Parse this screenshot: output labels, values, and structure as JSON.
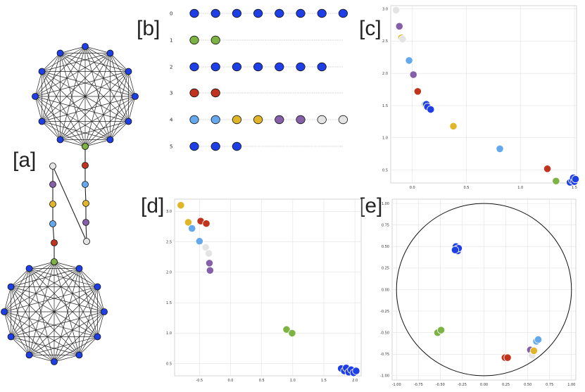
{
  "panel_labels": {
    "a": "[a]",
    "b": "[b]",
    "c": "[c]",
    "d": "[d]",
    "e": "[e]"
  },
  "colors": {
    "blue": "#1f3fe6",
    "green": "#7cb342",
    "red": "#c0341d",
    "lightblue": "#64a8ee",
    "gold": "#e0b528",
    "purple": "#8560a8",
    "lightgray": "#e4e4e4",
    "edge": "#222222"
  },
  "panel_b": {
    "rows": [
      {
        "label": "0",
        "nodes": [
          "blue",
          "blue",
          "blue",
          "blue",
          "blue",
          "blue",
          "blue",
          "blue"
        ]
      },
      {
        "label": "1",
        "nodes": [
          "green",
          "green"
        ]
      },
      {
        "label": "2",
        "nodes": [
          "blue",
          "blue",
          "blue",
          "blue",
          "blue",
          "blue",
          "blue"
        ]
      },
      {
        "label": "3",
        "nodes": [
          "red",
          "red"
        ]
      },
      {
        "label": "4",
        "nodes": [
          "lightblue",
          "lightblue",
          "gold",
          "gold",
          "purple",
          "purple",
          "lightgray",
          "lightgray"
        ]
      },
      {
        "label": "5",
        "nodes": [
          "blue",
          "blue",
          "blue"
        ]
      }
    ]
  },
  "chart_data": [
    {
      "panel": "c",
      "type": "scatter",
      "xlim": [
        -0.2,
        1.52
      ],
      "ylim": [
        0.3,
        3.05
      ],
      "x_ticks": [
        "0.0",
        "0.5",
        "1.0",
        "1.5"
      ],
      "y_ticks": [
        "0.5",
        "1.0",
        "1.5",
        "2.0",
        "2.5",
        "3.0"
      ],
      "grid": true,
      "points": [
        {
          "x": -0.15,
          "y": 2.98,
          "c": "lightgray"
        },
        {
          "x": -0.12,
          "y": 2.73,
          "c": "purple"
        },
        {
          "x": -0.1,
          "y": 2.55,
          "c": "gold"
        },
        {
          "x": -0.09,
          "y": 2.53,
          "c": "lightgray"
        },
        {
          "x": -0.03,
          "y": 2.2,
          "c": "lightblue"
        },
        {
          "x": 0.01,
          "y": 1.98,
          "c": "purple"
        },
        {
          "x": 0.05,
          "y": 1.72,
          "c": "red"
        },
        {
          "x": 0.12,
          "y": 1.52,
          "c": "green"
        },
        {
          "x": 0.13,
          "y": 1.52,
          "c": "blue"
        },
        {
          "x": 0.14,
          "y": 1.48,
          "c": "blue"
        },
        {
          "x": 0.17,
          "y": 1.44,
          "c": "blue"
        },
        {
          "x": 0.38,
          "y": 1.18,
          "c": "gold"
        },
        {
          "x": 0.81,
          "y": 0.83,
          "c": "lightblue"
        },
        {
          "x": 1.25,
          "y": 0.52,
          "c": "red"
        },
        {
          "x": 1.33,
          "y": 0.33,
          "c": "green"
        },
        {
          "x": 1.46,
          "y": 0.31,
          "c": "blue"
        },
        {
          "x": 1.48,
          "y": 0.34,
          "c": "blue"
        },
        {
          "x": 1.49,
          "y": 0.38,
          "c": "blue"
        },
        {
          "x": 1.5,
          "y": 0.32,
          "c": "blue"
        },
        {
          "x": 1.51,
          "y": 0.36,
          "c": "blue"
        }
      ]
    },
    {
      "panel": "d",
      "type": "scatter",
      "xlim": [
        -0.9,
        2.1
      ],
      "ylim": [
        0.3,
        3.2
      ],
      "x_ticks": [
        "-0.5",
        "0.0",
        "0.5",
        "1.0",
        "1.5",
        "2.0"
      ],
      "y_ticks": [
        "0.5",
        "1.0",
        "1.5",
        "2.0",
        "2.5",
        "3.0"
      ],
      "grid": true,
      "points": [
        {
          "x": -0.8,
          "y": 3.1,
          "c": "gold"
        },
        {
          "x": -0.68,
          "y": 2.82,
          "c": "gold"
        },
        {
          "x": -0.62,
          "y": 2.72,
          "c": "lightblue"
        },
        {
          "x": -0.48,
          "y": 2.84,
          "c": "red"
        },
        {
          "x": -0.39,
          "y": 2.8,
          "c": "red"
        },
        {
          "x": -0.5,
          "y": 2.51,
          "c": "lightblue"
        },
        {
          "x": -0.4,
          "y": 2.41,
          "c": "lightgray"
        },
        {
          "x": -0.35,
          "y": 2.31,
          "c": "lightgray"
        },
        {
          "x": -0.34,
          "y": 2.15,
          "c": "purple"
        },
        {
          "x": -0.33,
          "y": 2.03,
          "c": "purple"
        },
        {
          "x": 0.9,
          "y": 1.06,
          "c": "green"
        },
        {
          "x": 0.99,
          "y": 1.0,
          "c": "green"
        },
        {
          "x": 1.78,
          "y": 0.42,
          "c": "blue"
        },
        {
          "x": 1.83,
          "y": 0.38,
          "c": "blue"
        },
        {
          "x": 1.86,
          "y": 0.43,
          "c": "blue"
        },
        {
          "x": 1.9,
          "y": 0.36,
          "c": "blue"
        },
        {
          "x": 1.94,
          "y": 0.4,
          "c": "blue"
        },
        {
          "x": 1.98,
          "y": 0.35,
          "c": "blue"
        },
        {
          "x": 2.02,
          "y": 0.38,
          "c": "blue"
        }
      ]
    },
    {
      "panel": "e",
      "type": "scatter",
      "xlim": [
        -1.05,
        1.05
      ],
      "ylim": [
        -1.05,
        1.05
      ],
      "x_ticks": [
        "-1.00",
        "-0.75",
        "-0.50",
        "-0.25",
        "0.00",
        "0.25",
        "0.50",
        "0.75",
        "1.00"
      ],
      "y_ticks": [
        "1.00",
        "0.75",
        "0.50",
        "0.25",
        "0.00",
        "-0.25",
        "-0.50",
        "-0.75",
        "-1.00"
      ],
      "grid": true,
      "unit_circle": true,
      "points": [
        {
          "x": -0.32,
          "y": 0.5,
          "c": "blue"
        },
        {
          "x": -0.31,
          "y": 0.47,
          "c": "blue"
        },
        {
          "x": -0.3,
          "y": 0.45,
          "c": "blue"
        },
        {
          "x": -0.29,
          "y": 0.48,
          "c": "blue"
        },
        {
          "x": -0.33,
          "y": 0.46,
          "c": "blue"
        },
        {
          "x": -0.53,
          "y": -0.5,
          "c": "green"
        },
        {
          "x": -0.49,
          "y": -0.47,
          "c": "green"
        },
        {
          "x": 0.24,
          "y": -0.79,
          "c": "red"
        },
        {
          "x": 0.27,
          "y": -0.79,
          "c": "red"
        },
        {
          "x": 0.53,
          "y": -0.7,
          "c": "purple"
        },
        {
          "x": 0.55,
          "y": -0.76,
          "c": "lightgray"
        },
        {
          "x": 0.57,
          "y": -0.71,
          "c": "gold"
        },
        {
          "x": 0.6,
          "y": -0.6,
          "c": "lightblue"
        },
        {
          "x": 0.62,
          "y": -0.58,
          "c": "lightblue"
        }
      ]
    }
  ]
}
